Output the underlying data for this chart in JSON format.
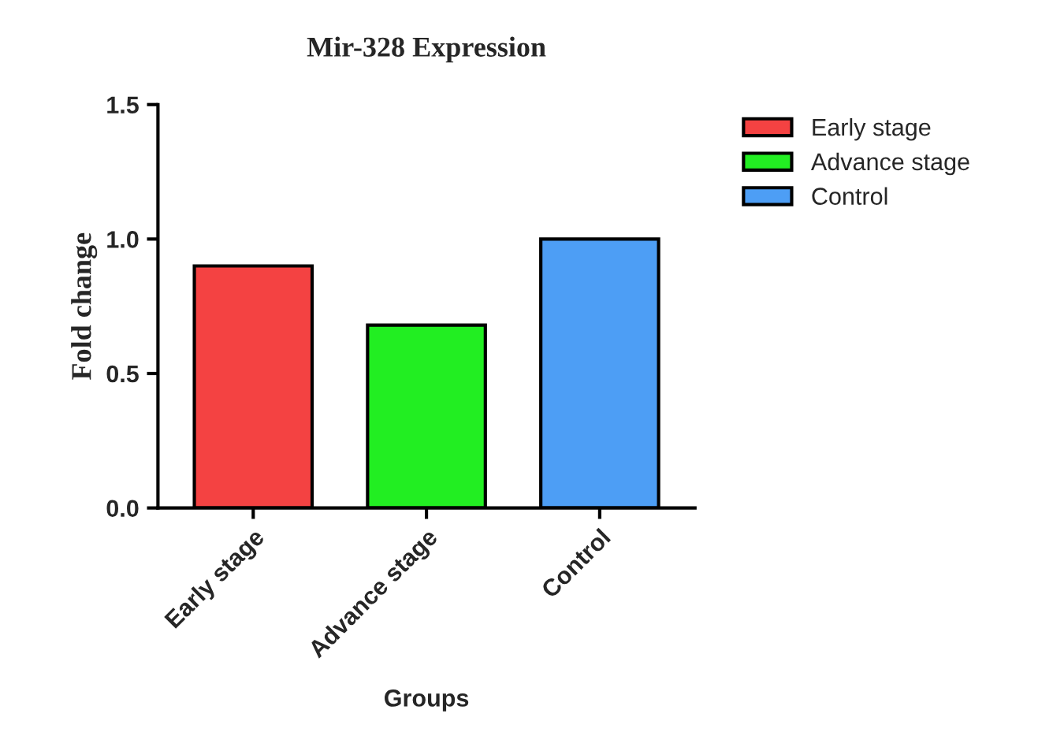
{
  "chart_data": {
    "type": "bar",
    "title": "Mir-328 Expression",
    "xlabel": "Groups",
    "ylabel": "Fold change",
    "categories": [
      "Early stage",
      "Advance stage",
      "Control"
    ],
    "series": [
      {
        "name": "Early stage",
        "color": "#f44242",
        "values": [
          0.9,
          null,
          null
        ]
      },
      {
        "name": "Advance stage",
        "color": "#22ee22",
        "values": [
          null,
          0.68,
          null
        ]
      },
      {
        "name": "Control",
        "color": "#4d9ef5",
        "values": [
          null,
          null,
          1.0
        ]
      }
    ],
    "ylim": [
      0,
      1.5
    ],
    "yticks": [
      {
        "value": 0,
        "label": "0.0"
      },
      {
        "value": 0.5,
        "label": "0.5"
      },
      {
        "value": 1.0,
        "label": "1.0"
      },
      {
        "value": 1.5,
        "label": "1.5"
      }
    ],
    "legend": "top right"
  }
}
